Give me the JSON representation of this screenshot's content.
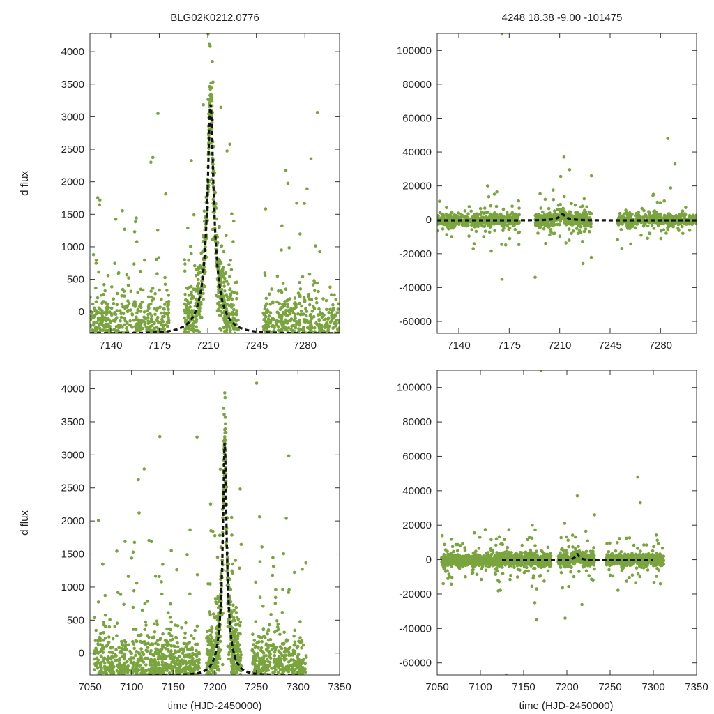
{
  "figure": {
    "title_left": "BLG02K0212.0776",
    "title_right": "4248  18.38  -9.00  -101475",
    "ylabel": "d flux",
    "xlabel": "time (HJD-2450000)",
    "point_color": "#7aa53e",
    "model_color": "#111111"
  },
  "chart_data": [
    {
      "id": "top-left",
      "type": "scatter",
      "title": "BLG02K0212.0776",
      "ylabel": "d flux",
      "xlabel": "",
      "xlim": [
        7125,
        7305
      ],
      "ylim": [
        -330,
        4280
      ],
      "xticks": [
        7140,
        7175,
        7210,
        7245,
        7280
      ],
      "yticks": [
        0,
        500,
        1000,
        1500,
        2000,
        2500,
        3000,
        3500,
        4000
      ],
      "series": [
        {
          "name": "photometry",
          "style": "points",
          "seed": 11,
          "n": 2100,
          "blocks": [
            [
              7125,
              7182,
              0.8
            ],
            [
              7193,
              7232,
              1.0
            ],
            [
              7250,
              7305,
              0.75
            ]
          ],
          "scatter_sigma": 300,
          "clip_to_ylim": true
        },
        {
          "name": "microlensing model",
          "style": "dashed-line",
          "t0": 7212,
          "tE": 16,
          "u0": 0.12,
          "base": -330,
          "peak": 3200
        }
      ]
    },
    {
      "id": "top-right",
      "type": "scatter",
      "title": "4248  18.38  -9.00  -101475",
      "ylabel": "",
      "xlabel": "",
      "xlim": [
        7125,
        7305
      ],
      "ylim": [
        -67000,
        110000
      ],
      "xticks": [
        7140,
        7175,
        7210,
        7245,
        7280
      ],
      "yticks": [
        -60000,
        -40000,
        -20000,
        0,
        20000,
        40000,
        60000,
        80000,
        100000
      ],
      "outliers": [
        [
          7170,
          110000
        ],
        [
          7170,
          -35000
        ],
        [
          7193,
          -34000
        ],
        [
          7213,
          37000
        ],
        [
          7232,
          26000
        ],
        [
          7285,
          48000
        ],
        [
          7290,
          33000
        ],
        [
          7160,
          20000
        ],
        [
          7150,
          -17000
        ]
      ],
      "series": [
        {
          "name": "photometry",
          "style": "points",
          "seed": 23,
          "n": 1500,
          "blocks": [
            [
              7125,
              7182,
              0.8
            ],
            [
              7193,
              7232,
              1.0
            ],
            [
              7250,
              7305,
              0.75
            ]
          ],
          "scatter_sigma": 1800
        },
        {
          "name": "microlensing model",
          "style": "dashed-line",
          "t0": 7212,
          "tE": 16,
          "u0": 0.12,
          "base": -330,
          "peak": 3200
        }
      ]
    },
    {
      "id": "bottom-left",
      "type": "scatter",
      "title": "",
      "ylabel": "d flux",
      "xlabel": "time (HJD-2450000)",
      "xlim": [
        7050,
        7350
      ],
      "ylim": [
        -330,
        4280
      ],
      "xticks": [
        7050,
        7100,
        7150,
        7200,
        7250,
        7300,
        7350
      ],
      "yticks": [
        0,
        500,
        1000,
        1500,
        2000,
        2500,
        3000,
        3500,
        4000
      ],
      "series": [
        {
          "name": "photometry",
          "style": "points",
          "seed": 37,
          "n": 2600,
          "blocks": [
            [
              7055,
              7110,
              0.7
            ],
            [
              7110,
              7182,
              0.8
            ],
            [
              7190,
              7232,
              1.0
            ],
            [
              7245,
              7310,
              0.75
            ]
          ],
          "scatter_sigma": 300,
          "clip_to_ylim": true
        },
        {
          "name": "microlensing model",
          "style": "dashed-line",
          "t0": 7212,
          "tE": 16,
          "u0": 0.12,
          "base": -330,
          "peak": 3200,
          "xrange": [
            7120,
            7300
          ]
        }
      ]
    },
    {
      "id": "bottom-right",
      "type": "scatter",
      "title": "",
      "ylabel": "",
      "xlabel": "time (HJD-2450000)",
      "xlim": [
        7050,
        7350
      ],
      "ylim": [
        -67000,
        110000
      ],
      "xticks": [
        7050,
        7100,
        7150,
        7200,
        7250,
        7300,
        7350
      ],
      "yticks": [
        -60000,
        -40000,
        -20000,
        0,
        20000,
        40000,
        60000,
        80000,
        100000
      ],
      "outliers": [
        [
          7170,
          110000
        ],
        [
          7130,
          -67000
        ],
        [
          7165,
          -35000
        ],
        [
          7198,
          -34000
        ],
        [
          7212,
          37000
        ],
        [
          7232,
          26000
        ],
        [
          7282,
          48000
        ],
        [
          7285,
          33000
        ],
        [
          7160,
          20000
        ],
        [
          7165,
          -17000
        ]
      ],
      "series": [
        {
          "name": "photometry",
          "style": "points",
          "seed": 53,
          "n": 2200,
          "blocks": [
            [
              7055,
              7110,
              0.7
            ],
            [
              7110,
              7182,
              0.8
            ],
            [
              7190,
              7232,
              1.0
            ],
            [
              7245,
              7312,
              0.75
            ]
          ],
          "scatter_sigma": 1800
        },
        {
          "name": "microlensing model",
          "style": "dashed-line",
          "t0": 7212,
          "tE": 16,
          "u0": 0.12,
          "base": -330,
          "peak": 3200,
          "xrange": [
            7125,
            7300
          ]
        }
      ]
    }
  ]
}
